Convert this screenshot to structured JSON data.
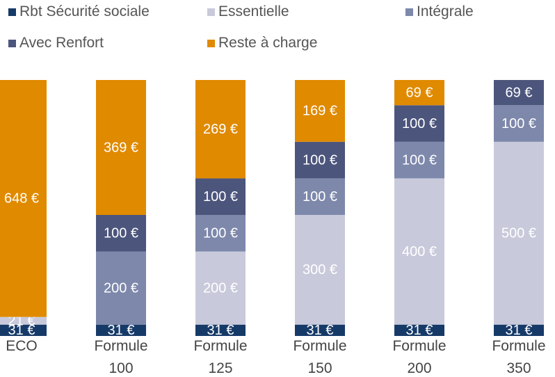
{
  "chart_data": {
    "type": "stacked_bar",
    "categories": [
      "ECO",
      "Formule 100",
      "Formule 125",
      "Formule 150",
      "Formule 200",
      "Formule 350"
    ],
    "ylim": [
      0,
      700
    ],
    "legend": "top",
    "series": [
      {
        "name": "Rbt Sécurité sociale",
        "color": "#163a68",
        "values": [
          31,
          31,
          31,
          31,
          31,
          31
        ],
        "value_labels": [
          "31 €",
          "31 €",
          "31 €",
          "31 €",
          "31 €",
          "31 €"
        ]
      },
      {
        "name": "Essentielle",
        "color": "#c8cadb",
        "values": [
          21,
          null,
          200,
          300,
          400,
          500
        ],
        "value_labels": [
          "21 €",
          null,
          "200 €",
          "300 €",
          "400 €",
          "500 €"
        ]
      },
      {
        "name": "Intégrale",
        "color": "#7d88ab",
        "values": [
          null,
          200,
          100,
          100,
          100,
          100
        ],
        "value_labels": [
          null,
          "200 €",
          "100 €",
          "100 €",
          "100 €",
          "100 €"
        ]
      },
      {
        "name": "Avec Renfort",
        "color": "#4c557c",
        "values": [
          null,
          100,
          100,
          100,
          100,
          69
        ],
        "value_labels": [
          null,
          "100 €",
          "100 €",
          "100 €",
          "100 €",
          "69 €"
        ]
      },
      {
        "name": "Reste à charge",
        "color": "#e08a00",
        "values": [
          648,
          369,
          269,
          169,
          69,
          null
        ],
        "value_labels": [
          "648 €",
          "369 €",
          "269 €",
          "169 €",
          "69 €",
          null
        ]
      }
    ]
  }
}
